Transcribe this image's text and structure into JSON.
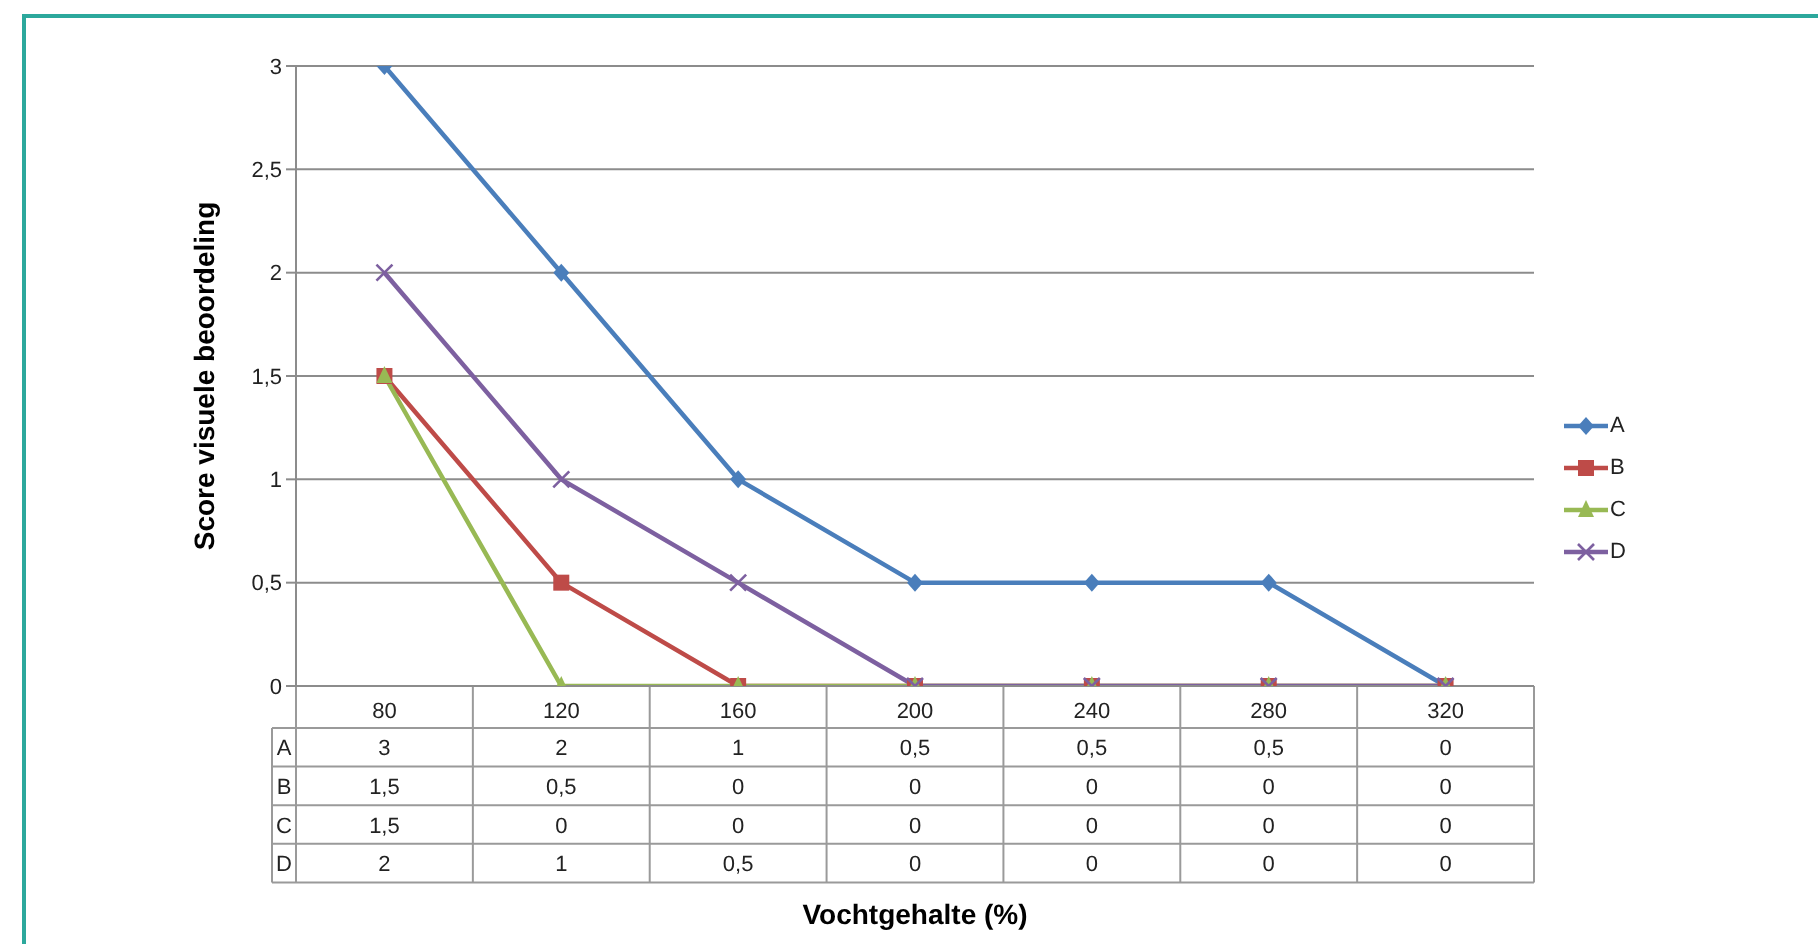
{
  "chart_data": {
    "type": "line",
    "ylabel": "Score visuele beoordeling",
    "annotations": [
      "Vochtgehalte (%)"
    ],
    "categories": [
      "80",
      "120",
      "160",
      "200",
      "240",
      "280",
      "320"
    ],
    "series": [
      {
        "name": "A",
        "color": "#4a7ebb",
        "marker": "diamond",
        "values": [
          3,
          2,
          1,
          0.5,
          0.5,
          0.5,
          0
        ],
        "value_labels": [
          "3",
          "2",
          "1",
          "0,5",
          "0,5",
          "0,5",
          "0"
        ]
      },
      {
        "name": "B",
        "color": "#be4b48",
        "marker": "square",
        "values": [
          1.5,
          0.5,
          0,
          0,
          0,
          0,
          0
        ],
        "value_labels": [
          "1,5",
          "0,5",
          "0",
          "0",
          "0",
          "0",
          "0"
        ]
      },
      {
        "name": "C",
        "color": "#98b954",
        "marker": "triangle",
        "values": [
          1.5,
          0,
          0,
          0,
          0,
          0,
          0
        ],
        "value_labels": [
          "1,5",
          "0",
          "0",
          "0",
          "0",
          "0",
          "0"
        ]
      },
      {
        "name": "D",
        "color": "#7d60a0",
        "marker": "cross",
        "values": [
          2,
          1,
          0.5,
          0,
          0,
          0,
          0
        ],
        "value_labels": [
          "2",
          "1",
          "0,5",
          "0",
          "0",
          "0",
          "0"
        ]
      }
    ],
    "ylim": [
      0,
      3
    ],
    "yticks": [
      0,
      {
        "value": 0.5,
        "label": "0,5"
      },
      1,
      {
        "value": 1.5,
        "label": "1,5"
      },
      2,
      {
        "value": 2.5,
        "label": "2,5"
      },
      3
    ],
    "grid": "y",
    "legend": "right",
    "line_style": "solid"
  }
}
